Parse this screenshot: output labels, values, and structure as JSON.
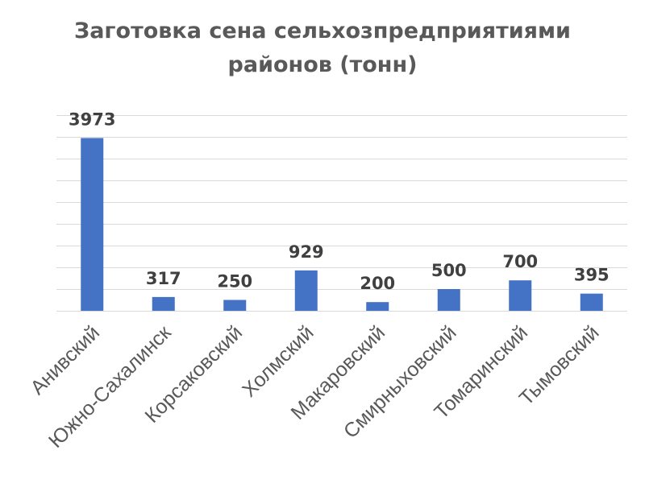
{
  "chart_data": {
    "type": "bar",
    "title": "Заготовка сена сельхозпредприятиями районов (тонн)",
    "title_lines": [
      "Заготовка  сена сельхозпредприятиями",
      "районов (тонн)"
    ],
    "categories": [
      "Анивский",
      "Южно-Сахалинск",
      "Корсаковский",
      "Холмский",
      "Макаровский",
      "Смирныховский",
      "Томаринский",
      "Тымовский"
    ],
    "values": [
      3973,
      317,
      250,
      929,
      200,
      500,
      700,
      395
    ],
    "ylim": [
      0,
      4500
    ],
    "y_tick_step": 500,
    "grid": true,
    "y_tick_labels_shown": false,
    "bar_color": "#4472c4",
    "grid_color": "#d9d9d9",
    "text_color": "#595959"
  }
}
